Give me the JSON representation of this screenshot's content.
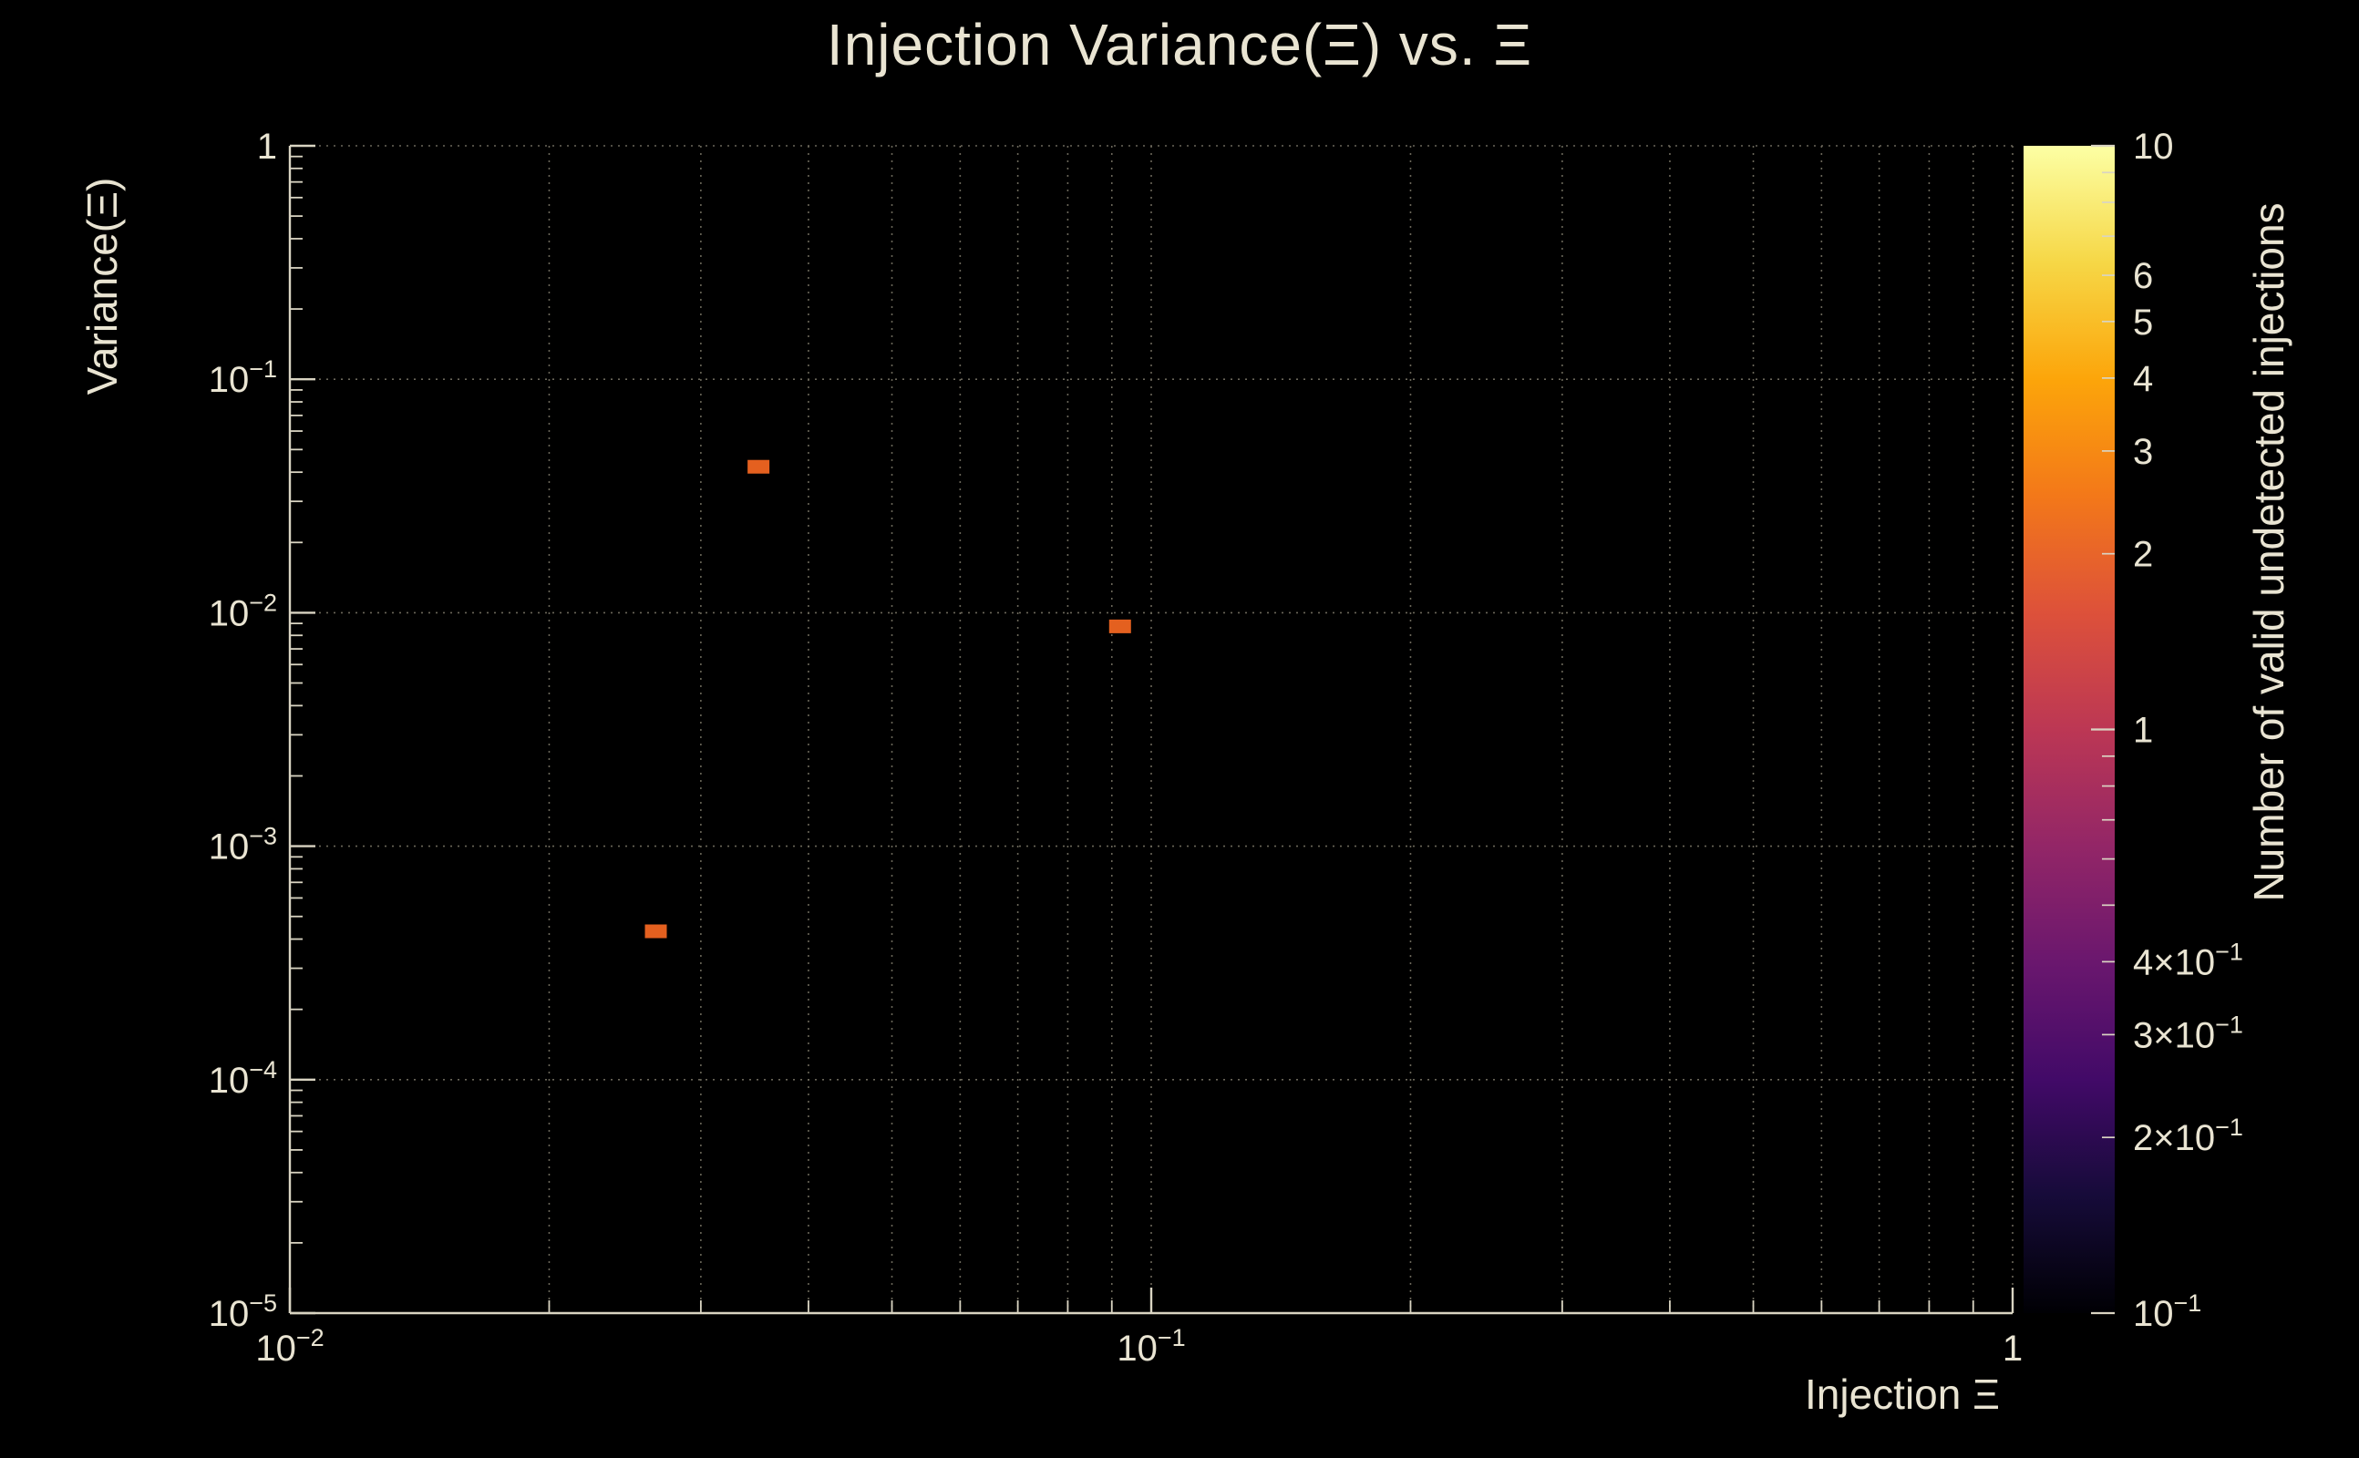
{
  "chart_data": {
    "type": "scatter",
    "title": "Injection Variance(Ξ) vs. Ξ",
    "xlabel": "Injection Ξ",
    "ylabel": "Variance(Ξ)",
    "zlabel": "Number of valid undetected injections",
    "x_scale": "log",
    "y_scale": "log",
    "z_scale": "log",
    "xlim": [
      0.01,
      1
    ],
    "ylim": [
      1e-05,
      1
    ],
    "zlim": [
      0.1,
      10
    ],
    "grid": true,
    "legend": "colorbar-right",
    "points": [
      {
        "x": 0.035,
        "y": 0.042,
        "value": 1
      },
      {
        "x": 0.092,
        "y": 0.0087,
        "value": 1
      },
      {
        "x": 0.0266,
        "y": 0.00043,
        "value": 1
      }
    ],
    "x_ticks": [
      {
        "v": 0.01,
        "t": "10",
        "s": "−2"
      },
      {
        "v": 0.1,
        "t": "10",
        "s": "−1"
      },
      {
        "v": 1,
        "t": "1"
      }
    ],
    "y_ticks": [
      {
        "v": 1,
        "t": "1"
      },
      {
        "v": 0.1,
        "t": "10",
        "s": "−1"
      },
      {
        "v": 0.01,
        "t": "10",
        "s": "−2"
      },
      {
        "v": 0.001,
        "t": "10",
        "s": "−3"
      },
      {
        "v": 0.0001,
        "t": "10",
        "s": "−4"
      },
      {
        "v": 1e-05,
        "t": "10",
        "s": "−5"
      }
    ],
    "z_ticks": [
      {
        "v": 10,
        "t": "10"
      },
      {
        "v": 6,
        "t": "6"
      },
      {
        "v": 5,
        "t": "5"
      },
      {
        "v": 4,
        "t": "4"
      },
      {
        "v": 3,
        "t": "3"
      },
      {
        "v": 2,
        "t": "2"
      },
      {
        "v": 1,
        "t": "1"
      },
      {
        "v": 0.4,
        "t": "4×10",
        "s": "−1"
      },
      {
        "v": 0.3,
        "t": "3×10",
        "s": "−1"
      },
      {
        "v": 0.2,
        "t": "2×10",
        "s": "−1"
      },
      {
        "v": 0.1,
        "t": "10",
        "s": "−1"
      }
    ],
    "palette": [
      "#000004",
      "#160b39",
      "#420a68",
      "#6a176e",
      "#932667",
      "#bc3754",
      "#dd513a",
      "#f37819",
      "#fca50a",
      "#f6d746",
      "#fcffa4"
    ],
    "colors": {
      "background": "#000000",
      "axis": "#d9d4c2",
      "grid": "#8f8a78",
      "text": "#e9e4d2",
      "marker": "#e4601f"
    }
  }
}
